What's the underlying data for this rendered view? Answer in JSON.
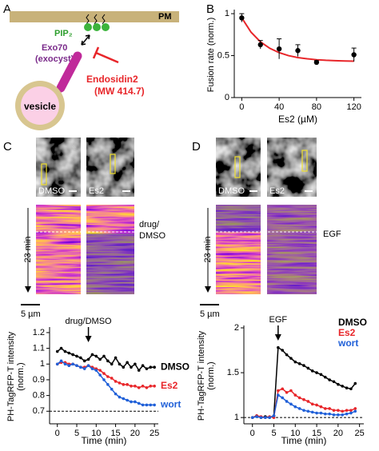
{
  "figure": {
    "panel_labels": [
      "A",
      "B",
      "C",
      "D"
    ],
    "diagram": {
      "membrane": "PM",
      "lipid": "PIP₂",
      "protein": "Exo70",
      "protein_note": "(exocyst)",
      "inhibitor": "Endosidin2",
      "inhibitor_note": "(MW 414.7)",
      "vesicle": "vesicle"
    },
    "panel_c_images": {
      "conditions": [
        "DMSO",
        "Es2"
      ],
      "treatment": "drug/",
      "treatment_2": "DMSO",
      "duration": "23 min",
      "scale": "5 µm"
    },
    "panel_d_images": {
      "conditions": [
        "DMSO",
        "Es2"
      ],
      "treatment": "EGF",
      "duration": "23 min",
      "scale": "5 µm"
    }
  },
  "chart_data": [
    {
      "type": "scatter",
      "xlabel": "Es2 (µM)",
      "ylabel": [
        "Fusion rate (norm.)"
      ],
      "x": [
        0,
        20,
        40,
        60,
        80,
        120
      ],
      "series": [
        {
          "color": "#000000",
          "values": [
            0.95,
            0.63,
            0.58,
            0.56,
            0.42,
            0.51
          ],
          "errors": [
            0.05,
            0.05,
            0.12,
            0.07,
            0.02,
            0.08
          ]
        }
      ],
      "fit": {
        "color": "#e8262a",
        "x": [
          0,
          10,
          20,
          30,
          40,
          50,
          60,
          70,
          80,
          90,
          100,
          110,
          120
        ],
        "values": [
          0.95,
          0.778,
          0.664,
          0.587,
          0.535,
          0.5,
          0.477,
          0.462,
          0.451,
          0.444,
          0.44,
          0.436,
          0.434
        ]
      },
      "xlim": [
        -8,
        128
      ],
      "ylim": [
        0,
        1.02
      ],
      "xticks": [
        0,
        40,
        80,
        120
      ],
      "yticks": [
        0,
        0.5,
        1
      ]
    },
    {
      "type": "line",
      "xlabel": "Time (min)",
      "ylabel": [
        "PH-TagRFP-T intensity",
        "(norm.)"
      ],
      "annotation": {
        "text": "drug/DMSO",
        "x": 8
      },
      "reference_line": 0.7,
      "legend": "line-ends",
      "x": [
        0,
        1,
        2,
        3,
        4,
        5,
        6,
        7,
        8,
        9,
        10,
        11,
        12,
        13,
        14,
        15,
        16,
        17,
        18,
        19,
        20,
        21,
        22,
        23,
        24,
        25
      ],
      "series": [
        {
          "name": "DMSO",
          "color": "#000000",
          "values": [
            1.08,
            1.1,
            1.08,
            1.07,
            1.06,
            1.05,
            1.04,
            1.02,
            1.03,
            1.06,
            1.05,
            1.03,
            1.05,
            1.02,
            1.0,
            1.04,
            1.0,
            0.98,
            1.01,
            0.98,
            1.0,
            0.96,
            0.99,
            0.97,
            0.98,
            0.98
          ]
        },
        {
          "name": "Es2",
          "color": "#e8262a",
          "values": [
            1.0,
            1.01,
            1.01,
            1.0,
            1.0,
            0.99,
            0.98,
            0.98,
            0.99,
            0.98,
            0.97,
            0.96,
            0.94,
            0.92,
            0.91,
            0.89,
            0.88,
            0.87,
            0.87,
            0.86,
            0.86,
            0.85,
            0.86,
            0.85,
            0.86,
            0.86
          ]
        },
        {
          "name": "wort",
          "color": "#2060d8",
          "values": [
            1.0,
            1.02,
            1.0,
            0.99,
            1.0,
            0.99,
            0.98,
            0.97,
            0.99,
            0.97,
            0.96,
            0.93,
            0.9,
            0.87,
            0.84,
            0.81,
            0.79,
            0.78,
            0.77,
            0.76,
            0.76,
            0.75,
            0.74,
            0.74,
            0.74,
            0.74
          ]
        }
      ],
      "xlim": [
        -2,
        26
      ],
      "ylim": [
        0.62,
        1.22
      ],
      "xticks": [
        0,
        5,
        10,
        15,
        20,
        25
      ],
      "yticks": [
        0.7,
        0.8,
        0.9,
        1,
        1.1,
        1.2
      ]
    },
    {
      "type": "line",
      "xlabel": "Time (min)",
      "ylabel": [
        "PH-TagRFP-T intensity",
        "(norm.)"
      ],
      "annotation": {
        "text": "EGF",
        "x": 6
      },
      "reference_line": 1,
      "legend": "top-right",
      "x": [
        0,
        1,
        2,
        3,
        4,
        5,
        6,
        7,
        8,
        9,
        10,
        11,
        12,
        13,
        14,
        15,
        16,
        17,
        18,
        19,
        20,
        21,
        22,
        23,
        24
      ],
      "series": [
        {
          "name": "DMSO",
          "color": "#000000",
          "values": [
            1.0,
            1.02,
            1.0,
            1.01,
            1.0,
            1.02,
            1.78,
            1.75,
            1.7,
            1.66,
            1.62,
            1.6,
            1.58,
            1.55,
            1.52,
            1.5,
            1.48,
            1.45,
            1.42,
            1.4,
            1.37,
            1.35,
            1.33,
            1.32,
            1.38
          ]
        },
        {
          "name": "Es2",
          "color": "#e8262a",
          "values": [
            1.0,
            1.02,
            1.01,
            1.0,
            1.01,
            1.0,
            1.3,
            1.32,
            1.28,
            1.3,
            1.25,
            1.22,
            1.2,
            1.18,
            1.15,
            1.14,
            1.12,
            1.1,
            1.1,
            1.08,
            1.08,
            1.07,
            1.08,
            1.08,
            1.1
          ]
        },
        {
          "name": "wort",
          "color": "#2060d8",
          "values": [
            1.0,
            1.01,
            1.0,
            1.0,
            1.0,
            1.02,
            1.25,
            1.22,
            1.18,
            1.15,
            1.12,
            1.1,
            1.08,
            1.07,
            1.06,
            1.05,
            1.05,
            1.04,
            1.04,
            1.03,
            1.03,
            1.03,
            1.04,
            1.05,
            1.07
          ]
        }
      ],
      "xlim": [
        -2,
        26
      ],
      "ylim": [
        0.93,
        2.0
      ],
      "xticks": [
        0,
        5,
        10,
        15,
        20,
        25
      ],
      "yticks": [
        1,
        1.5,
        2
      ]
    }
  ]
}
